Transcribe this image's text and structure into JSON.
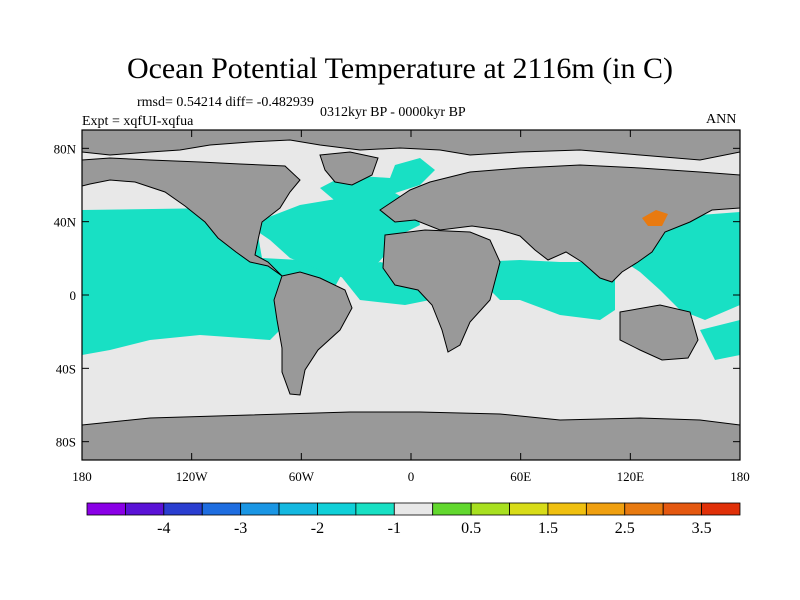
{
  "chart_data": {
    "type": "heatmap",
    "title": "Ocean Potential Temperature at 2116m (in C)",
    "stats_text": "rmsd= 0.54214 diff= -0.482939",
    "period_text": "0312kyr BP - 0000kyr BP",
    "experiment_text": "Expt = xqfUI-xqfua",
    "season_text": "ANN",
    "x_axis": {
      "range": [
        -180,
        180
      ],
      "ticks": [
        -180,
        -120,
        -60,
        0,
        60,
        120,
        180
      ],
      "tick_labels": [
        "180",
        "120W",
        "60W",
        "0",
        "60E",
        "120E",
        "180"
      ]
    },
    "y_axis": {
      "range": [
        -90,
        90
      ],
      "ticks": [
        80,
        40,
        0,
        -40,
        -80
      ],
      "tick_labels": [
        "80N",
        "40N",
        "0",
        "40S",
        "80S"
      ]
    },
    "colorbar": {
      "bounds": [
        -4.5,
        -4,
        -3.5,
        -3,
        -2.5,
        -2,
        -1.5,
        -1,
        -0.5,
        0.5,
        1,
        1.5,
        2,
        2.5,
        3,
        3.5,
        4
      ],
      "colors": [
        "#8a00e6",
        "#5a12d6",
        "#2a3ed0",
        "#1e6de0",
        "#1a96e4",
        "#14b8e0",
        "#10d0d8",
        "#18e0c4",
        "#e8e8e8",
        "#62d82e",
        "#a8e020",
        "#d8dc18",
        "#f0c010",
        "#f0a010",
        "#e87a10",
        "#e45810",
        "#e03008"
      ],
      "labeled_values": [
        -4,
        -3,
        -2,
        -1,
        0.5,
        1.5,
        2.5,
        3.5
      ],
      "labels": [
        "-4",
        "-3",
        "-2",
        "-1",
        "0.5",
        "1.5",
        "2.5",
        "3.5"
      ]
    },
    "field_summary": {
      "land_color": "#999999",
      "dominant_ocean_class": "-1 to -0.5 (cyan-green) in Pacific, tropical Atlantic and Indian Ocean",
      "southern_ocean_class": "-0.5 to 0.5 (light grey)",
      "warm_anomaly_region": "Sea of Japan, 2.5 to 3.5 (orange)"
    }
  }
}
